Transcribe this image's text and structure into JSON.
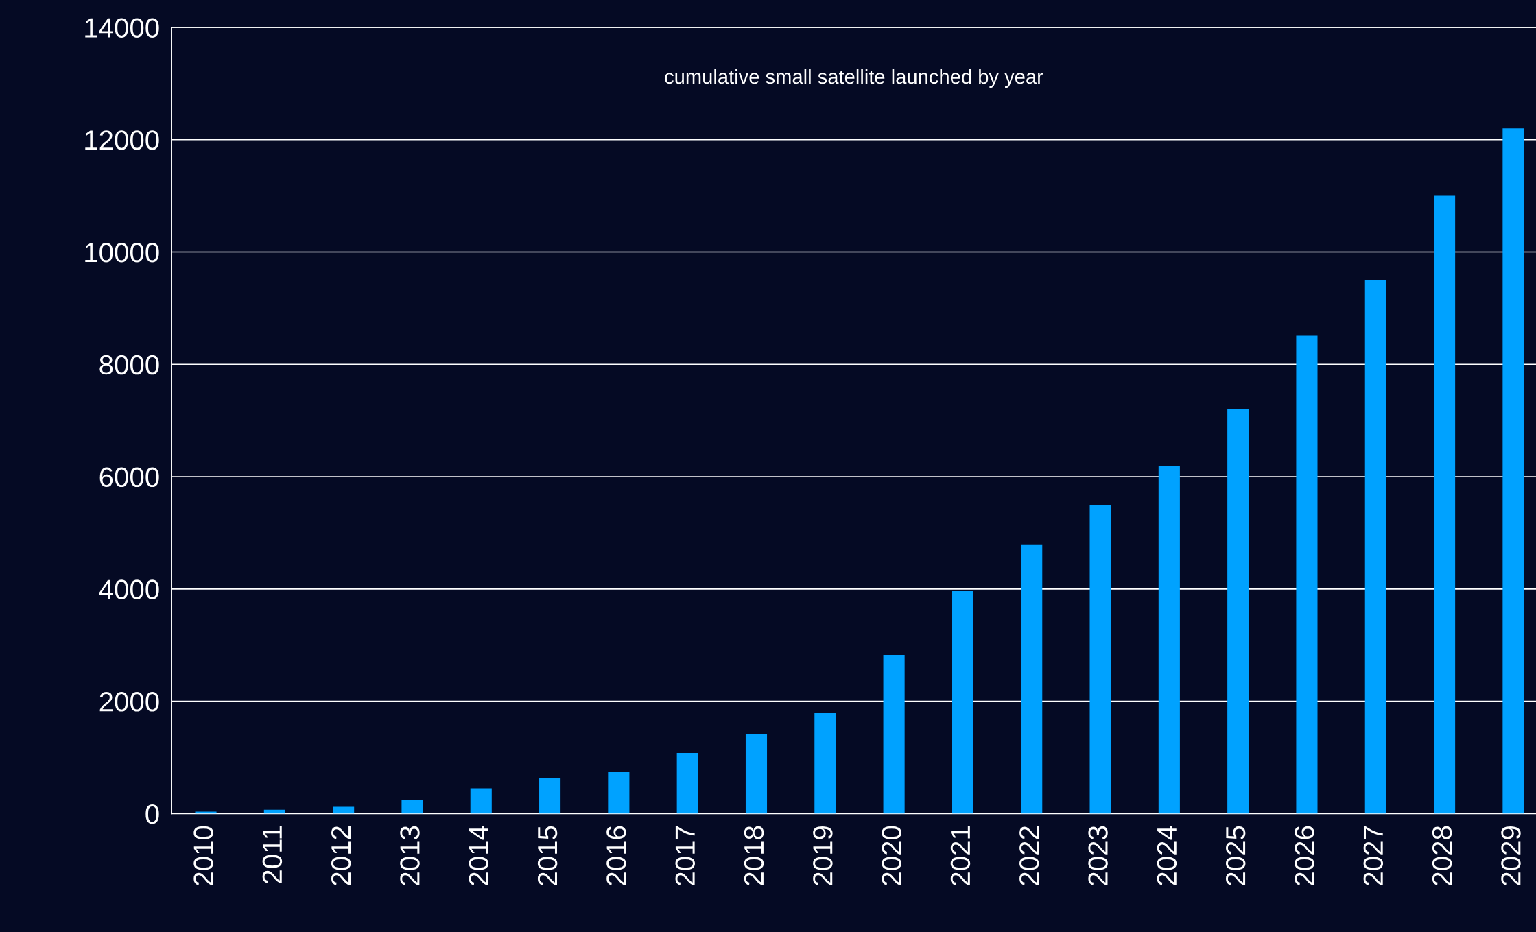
{
  "chart_data": {
    "type": "bar",
    "title": "cumulative small satellite launched by year",
    "categories": [
      "2010",
      "2011",
      "2012",
      "2013",
      "2014",
      "2015",
      "2016",
      "2017",
      "2018",
      "2019",
      "2020",
      "2021",
      "2022",
      "2023",
      "2024",
      "2025",
      "2026",
      "2027",
      "2028",
      "2029"
    ],
    "values": [
      35,
      70,
      120,
      245,
      450,
      630,
      750,
      1080,
      1410,
      1800,
      2825,
      3960,
      4795,
      5490,
      6190,
      7200,
      8510,
      9500,
      11000,
      12200
    ],
    "color": "#00a2ff",
    "ylim": [
      0,
      14000
    ],
    "yticks": [
      0,
      2000,
      4000,
      6000,
      8000,
      10000,
      12000,
      14000
    ],
    "grid": "y"
  }
}
